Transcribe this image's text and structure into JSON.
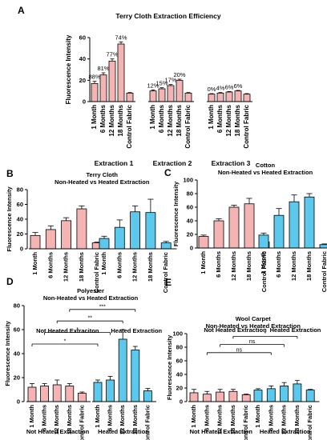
{
  "colors": {
    "pink": "#f4b4b4",
    "blue": "#5bc8ec",
    "stroke": "#000000"
  },
  "chart_data": [
    {
      "panel": "A",
      "type": "bar",
      "title": "Terry Cloth Extraction Efficiency",
      "ylabel": "Fluorescence Intensity",
      "ylim": [
        0,
        60
      ],
      "yticks": [
        0,
        20,
        40,
        60
      ],
      "groups": [
        "Extraction 1",
        "Extraction 2",
        "Extraction 3"
      ],
      "categories": [
        "1 Month",
        "6 Months",
        "12 Months",
        "18 Months",
        "Control Fabric"
      ],
      "series": [
        {
          "values": [
            17,
            25,
            38,
            54,
            8
          ],
          "errors": [
            2,
            2,
            2,
            2,
            0.5
          ],
          "labels": [
            "88%",
            "81%",
            "77%",
            "74%",
            ""
          ]
        },
        {
          "values": [
            10,
            12,
            15,
            20,
            8
          ],
          "errors": [
            1,
            1,
            1,
            1,
            0.5
          ],
          "labels": [
            "12%",
            "15%",
            "17%",
            "20%",
            ""
          ]
        },
        {
          "values": [
            7,
            8,
            9,
            10,
            7
          ],
          "errors": [
            0.5,
            0.5,
            0.5,
            0.5,
            0.5
          ],
          "labels": [
            "0%",
            "4%",
            "6%",
            "6%",
            ""
          ]
        }
      ]
    },
    {
      "panel": "B",
      "type": "bar",
      "title": "Terry Cloth",
      "subtitle": "Non-Heated vs Heated Extraction",
      "ylabel": "Fluorescence Intensity",
      "ylim": [
        0,
        80
      ],
      "yticks": [
        0,
        20,
        40,
        60,
        80
      ],
      "categories": [
        "1 Month",
        "6 Months",
        "12 Months",
        "18 Months",
        "Control Fabric"
      ],
      "series": [
        {
          "name": "Not Heated Extraciton",
          "values": [
            18,
            26,
            38,
            54,
            8
          ],
          "errors": [
            4,
            5,
            4,
            4,
            1
          ]
        },
        {
          "name": "Heated Extraction",
          "values": [
            14,
            29,
            50,
            49,
            8
          ],
          "errors": [
            3,
            10,
            8,
            18,
            2
          ]
        }
      ],
      "significance": []
    },
    {
      "panel": "C",
      "type": "bar",
      "title": "Cotton",
      "subtitle": "Non-Heated vs Heated Extraction",
      "ylabel": "Fluorescence Intensity",
      "ylim": [
        0,
        100
      ],
      "yticks": [
        0,
        20,
        40,
        60,
        80,
        100
      ],
      "categories": [
        "1 Month",
        "6 Months",
        "12 Months",
        "18 Months",
        "Control Fabric"
      ],
      "series": [
        {
          "name": "Not Heated Extraction",
          "values": [
            17,
            40,
            60,
            65,
            9
          ],
          "errors": [
            2,
            3,
            3,
            8,
            1
          ]
        },
        {
          "name": "Heated Extraction",
          "values": [
            19,
            48,
            68,
            75,
            5
          ],
          "errors": [
            3,
            10,
            10,
            5,
            1
          ]
        }
      ],
      "significance": []
    },
    {
      "panel": "D",
      "type": "bar",
      "title": "Polyester",
      "subtitle": "Non-Heated vs Heated Extraction",
      "ylabel": "Fluorescence Intensity",
      "ylim": [
        0,
        80
      ],
      "yticks": [
        0,
        20,
        40,
        60,
        80
      ],
      "categories": [
        "1 Month",
        "6 Months",
        "12 Months",
        "18 Months",
        "Control Fabric"
      ],
      "series": [
        {
          "name": "Not Heated Extraction",
          "values": [
            12,
            13,
            14,
            13,
            7
          ],
          "errors": [
            3,
            2,
            4,
            2,
            1
          ]
        },
        {
          "name": "Heated Extraction",
          "values": [
            16,
            18,
            52,
            43,
            9
          ],
          "errors": [
            2,
            3,
            8,
            3,
            2
          ]
        }
      ],
      "significance": [
        {
          "label": "***",
          "from": [
            0,
            3
          ],
          "to": [
            1,
            3
          ]
        },
        {
          "label": "**",
          "from": [
            0,
            2
          ],
          "to": [
            1,
            2
          ]
        },
        {
          "label": "*",
          "from": [
            0,
            1
          ],
          "to": [
            1,
            1
          ]
        },
        {
          "label": "*",
          "from": [
            0,
            0
          ],
          "to": [
            1,
            0
          ]
        }
      ]
    },
    {
      "panel": "E",
      "type": "bar",
      "title": "Wool Carpet",
      "subtitle": "Non-Heated vs Heated Extraction",
      "ylabel": "Fluorescence Intensity",
      "ylim": [
        0,
        100
      ],
      "yticks": [
        0,
        20,
        40,
        60,
        80,
        100
      ],
      "categories": [
        "1 Month",
        "6 Months",
        "12 Months",
        "18 Months",
        "Control Fabric"
      ],
      "series": [
        {
          "name": "Not Heated Extraction",
          "values": [
            13,
            11,
            14,
            15,
            10
          ],
          "errors": [
            5,
            4,
            4,
            3,
            1
          ]
        },
        {
          "name": "Heated Extraction",
          "values": [
            17,
            19,
            23,
            26,
            17
          ],
          "errors": [
            2,
            4,
            5,
            5,
            1
          ]
        }
      ],
      "significance": [
        {
          "label": "*",
          "from": [
            0,
            3
          ],
          "to": [
            1,
            3
          ]
        },
        {
          "label": "ns",
          "from": [
            0,
            2
          ],
          "to": [
            1,
            2
          ]
        },
        {
          "label": "ns",
          "from": [
            0,
            1
          ],
          "to": [
            1,
            1
          ]
        }
      ]
    }
  ]
}
